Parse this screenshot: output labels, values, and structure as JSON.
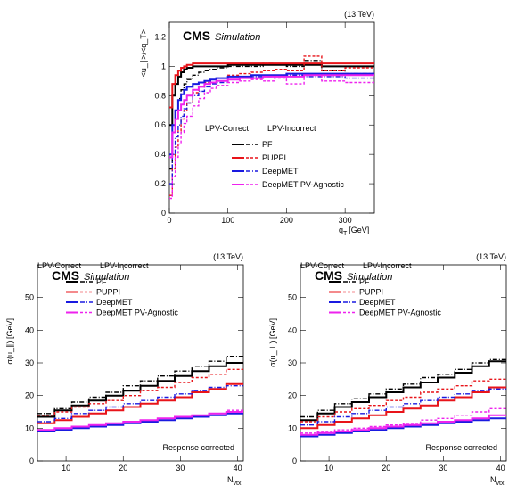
{
  "colors": {
    "PF": "#000000",
    "PUPPI": "#e8141a",
    "DeepMET": "#1a1ae0",
    "DeepMET PV-Agnostic": "#ee22ee"
  },
  "chart_data": [
    {
      "id": "top",
      "type": "line",
      "energy": "(13 TeV)",
      "cms": "CMS",
      "simulation": "Simulation",
      "ylabel": "-<u_∥>/<q_T>",
      "xlabel_main": "q",
      "xlabel_sub": "T",
      "xlabel_unit": "[GeV]",
      "xlim": [
        0,
        350
      ],
      "ylim": [
        0,
        1.3
      ],
      "xticks": [
        0,
        100,
        200,
        300
      ],
      "yticks": [
        0,
        0.2,
        0.4,
        0.6,
        0.8,
        1,
        1.2
      ],
      "legend_head_correct": "LPV-Correct",
      "legend_head_incorrect": "LPV-Incorrect",
      "legend": [
        "PF",
        "PUPPI",
        "DeepMET",
        "DeepMET PV-Agnostic"
      ],
      "x_edges": [
        0,
        5,
        10,
        15,
        20,
        25,
        30,
        40,
        50,
        60,
        70,
        80,
        100,
        120,
        140,
        160,
        180,
        200,
        230,
        260,
        300,
        350
      ],
      "series": [
        {
          "name": "PF",
          "style": "correct",
          "values": [
            0.6,
            0.8,
            0.88,
            0.93,
            0.96,
            0.98,
            0.99,
            1.0,
            1.0,
            1.0,
            1.0,
            1.0,
            1.01,
            1.01,
            1.01,
            1.01,
            1.01,
            1.01,
            1.01,
            1.0,
            1.0
          ]
        },
        {
          "name": "PF",
          "style": "incorrect",
          "values": [
            0.3,
            0.55,
            0.7,
            0.78,
            0.84,
            0.88,
            0.91,
            0.94,
            0.96,
            0.97,
            0.98,
            0.99,
            1.0,
            1.0,
            1.0,
            1.02,
            1.01,
            1.0,
            1.04,
            0.97,
            0.95
          ]
        },
        {
          "name": "PUPPI",
          "style": "correct",
          "values": [
            0.72,
            0.88,
            0.94,
            0.97,
            0.99,
            1.0,
            1.01,
            1.02,
            1.02,
            1.02,
            1.02,
            1.02,
            1.02,
            1.02,
            1.02,
            1.02,
            1.02,
            1.02,
            1.02,
            1.02,
            1.02
          ]
        },
        {
          "name": "PUPPI",
          "style": "incorrect",
          "values": [
            0.12,
            0.3,
            0.45,
            0.56,
            0.64,
            0.7,
            0.75,
            0.82,
            0.86,
            0.89,
            0.91,
            0.92,
            0.94,
            0.95,
            0.96,
            0.97,
            0.98,
            0.97,
            1.07,
            0.97,
            0.99
          ]
        },
        {
          "name": "DeepMET",
          "style": "correct",
          "values": [
            0.4,
            0.6,
            0.7,
            0.77,
            0.81,
            0.84,
            0.86,
            0.88,
            0.89,
            0.9,
            0.91,
            0.92,
            0.93,
            0.93,
            0.94,
            0.94,
            0.94,
            0.95,
            0.95,
            0.95,
            0.95
          ]
        },
        {
          "name": "DeepMET",
          "style": "incorrect",
          "values": [
            0.2,
            0.4,
            0.52,
            0.6,
            0.66,
            0.71,
            0.75,
            0.8,
            0.83,
            0.86,
            0.88,
            0.89,
            0.91,
            0.92,
            0.93,
            0.93,
            0.94,
            0.94,
            0.93,
            0.93,
            0.92
          ]
        },
        {
          "name": "DeepMET PV-Agnostic",
          "style": "correct",
          "values": [
            0.38,
            0.55,
            0.64,
            0.7,
            0.74,
            0.77,
            0.8,
            0.84,
            0.86,
            0.88,
            0.89,
            0.9,
            0.91,
            0.92,
            0.92,
            0.93,
            0.93,
            0.93,
            0.94,
            0.94,
            0.94
          ]
        },
        {
          "name": "DeepMET PV-Agnostic",
          "style": "incorrect",
          "values": [
            0.1,
            0.25,
            0.38,
            0.47,
            0.55,
            0.61,
            0.66,
            0.73,
            0.78,
            0.82,
            0.85,
            0.87,
            0.89,
            0.9,
            0.91,
            0.9,
            0.92,
            0.88,
            0.94,
            0.9,
            0.89
          ]
        }
      ]
    },
    {
      "id": "bottom-left",
      "type": "line",
      "energy": "(13 TeV)",
      "cms": "CMS",
      "simulation": "Simulation",
      "ylabel": "σ(u_∥) [GeV]",
      "xlabel_main": "N",
      "xlabel_sub": "vtx",
      "xlim": [
        5,
        41
      ],
      "ylim": [
        0,
        60
      ],
      "xticks": [
        10,
        20,
        30,
        40
      ],
      "yticks": [
        0,
        10,
        20,
        30,
        40,
        50
      ],
      "legend_head_correct": "LPV-Correct",
      "legend_head_incorrect": "LPV-Incorrect",
      "legend": [
        "PF",
        "PUPPI",
        "DeepMET",
        "DeepMET PV-Agnostic"
      ],
      "annotation": "Response corrected",
      "x_edges": [
        5,
        8,
        11,
        14,
        17,
        20,
        23,
        26,
        29,
        32,
        35,
        38,
        41
      ],
      "series": [
        {
          "name": "PF",
          "style": "correct",
          "values": [
            13.5,
            15.5,
            17.0,
            18.5,
            20.0,
            21.5,
            23.0,
            24.5,
            26.0,
            27.5,
            29.0,
            30.0
          ]
        },
        {
          "name": "PF",
          "style": "incorrect",
          "values": [
            14.5,
            16.0,
            18.0,
            19.5,
            21.0,
            23.0,
            24.5,
            26.0,
            27.5,
            29.0,
            30.5,
            32.0
          ]
        },
        {
          "name": "PUPPI",
          "style": "correct",
          "values": [
            11.5,
            12.5,
            13.5,
            14.5,
            15.5,
            16.5,
            17.5,
            18.5,
            19.5,
            21.0,
            22.0,
            23.5
          ]
        },
        {
          "name": "PUPPI",
          "style": "incorrect",
          "values": [
            14.0,
            15.0,
            16.5,
            17.5,
            18.5,
            20.0,
            21.5,
            22.5,
            24.0,
            25.5,
            26.5,
            28.0
          ]
        },
        {
          "name": "DeepMET",
          "style": "correct",
          "values": [
            9.0,
            9.5,
            10.0,
            10.5,
            11.0,
            11.5,
            12.0,
            12.5,
            13.0,
            13.5,
            14.0,
            14.5
          ]
        },
        {
          "name": "DeepMET",
          "style": "incorrect",
          "values": [
            12.0,
            13.0,
            14.5,
            15.5,
            16.5,
            17.5,
            18.5,
            19.5,
            20.5,
            21.5,
            22.5,
            23.0
          ]
        },
        {
          "name": "DeepMET PV-Agnostic",
          "style": "correct",
          "values": [
            9.5,
            10.0,
            10.5,
            11.0,
            11.5,
            12.0,
            12.5,
            13.0,
            13.5,
            14.0,
            14.5,
            15.0
          ]
        },
        {
          "name": "DeepMET PV-Agnostic",
          "style": "incorrect",
          "values": [
            9.5,
            10.0,
            10.5,
            11.0,
            11.5,
            12.0,
            12.5,
            13.0,
            13.5,
            14.0,
            14.5,
            15.5
          ]
        }
      ]
    },
    {
      "id": "bottom-right",
      "type": "line",
      "energy": "(13 TeV)",
      "cms": "CMS",
      "simulation": "Simulation",
      "ylabel": "σ(u_⊥) [GeV]",
      "xlabel_main": "N",
      "xlabel_sub": "vtx",
      "xlim": [
        5,
        41
      ],
      "ylim": [
        0,
        60
      ],
      "xticks": [
        10,
        20,
        30,
        40
      ],
      "yticks": [
        0,
        10,
        20,
        30,
        40,
        50
      ],
      "legend_head_correct": "LPV-Correct",
      "legend_head_incorrect": "LPV-Incorrect",
      "legend": [
        "PF",
        "PUPPI",
        "DeepMET",
        "DeepMET PV-Agnostic"
      ],
      "annotation": "Response corrected",
      "x_edges": [
        5,
        8,
        11,
        14,
        17,
        20,
        23,
        26,
        29,
        32,
        35,
        38,
        41
      ],
      "series": [
        {
          "name": "PF",
          "style": "correct",
          "values": [
            12.5,
            14.5,
            16.5,
            18.0,
            19.5,
            21.0,
            22.5,
            24.0,
            25.5,
            27.0,
            29.0,
            30.5
          ]
        },
        {
          "name": "PF",
          "style": "incorrect",
          "values": [
            13.5,
            15.5,
            17.5,
            19.0,
            20.5,
            22.0,
            23.5,
            25.5,
            26.5,
            28.0,
            30.0,
            31.0
          ]
        },
        {
          "name": "PUPPI",
          "style": "correct",
          "values": [
            10.0,
            11.0,
            12.0,
            13.0,
            14.0,
            15.0,
            16.0,
            17.0,
            18.5,
            19.5,
            21.0,
            22.5
          ]
        },
        {
          "name": "PUPPI",
          "style": "incorrect",
          "values": [
            12.0,
            13.5,
            15.0,
            16.0,
            17.0,
            18.5,
            19.5,
            21.0,
            22.0,
            23.0,
            24.5,
            25.0
          ]
        },
        {
          "name": "DeepMET",
          "style": "correct",
          "values": [
            7.5,
            8.0,
            8.5,
            9.0,
            9.5,
            10.0,
            10.5,
            11.0,
            11.5,
            12.0,
            12.5,
            13.0
          ]
        },
        {
          "name": "DeepMET",
          "style": "incorrect",
          "values": [
            11.0,
            12.0,
            13.5,
            14.5,
            15.5,
            16.5,
            17.5,
            18.5,
            19.5,
            20.5,
            21.5,
            22.0
          ]
        },
        {
          "name": "DeepMET PV-Agnostic",
          "style": "correct",
          "values": [
            8.0,
            8.5,
            9.0,
            9.5,
            10.0,
            10.5,
            11.0,
            11.5,
            12.0,
            12.5,
            13.0,
            14.0
          ]
        },
        {
          "name": "DeepMET PV-Agnostic",
          "style": "incorrect",
          "values": [
            8.5,
            9.0,
            9.5,
            10.0,
            10.5,
            11.0,
            11.5,
            12.5,
            13.0,
            14.0,
            15.0,
            16.0
          ]
        }
      ]
    }
  ]
}
